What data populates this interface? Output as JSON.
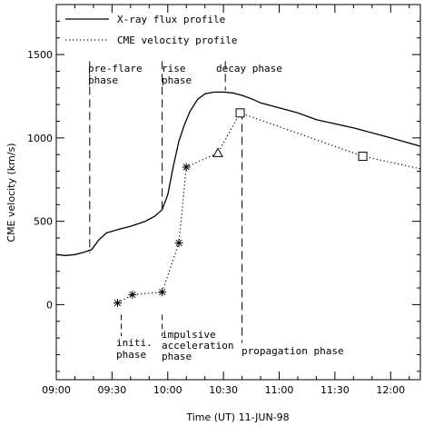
{
  "chart_data": {
    "type": "line",
    "xlabel": "Time (UT) 11-JUN-98",
    "ylabel": "CME velocity (km/s)",
    "x_tick_labels": [
      "09:00",
      "09:30",
      "10:00",
      "10:30",
      "11:00",
      "11:30",
      "12:00"
    ],
    "x_ticks": [
      "09:00",
      "09:30",
      "10:00",
      "10:30",
      "11:00",
      "11:30",
      "12:00"
    ],
    "y_ticks": [
      0,
      500,
      1000,
      1500
    ],
    "xlim": [
      "09:00",
      "12:16"
    ],
    "ylim": [
      -450,
      1800
    ],
    "legend_position": "top-left",
    "series": [
      {
        "name": "X-ray flux profile",
        "style": "solid",
        "points": [
          [
            "09:00",
            300
          ],
          [
            "09:05",
            295
          ],
          [
            "09:10",
            300
          ],
          [
            "09:15",
            315
          ],
          [
            "09:19",
            330
          ],
          [
            "09:23",
            390
          ],
          [
            "09:27",
            430
          ],
          [
            "09:33",
            450
          ],
          [
            "09:40",
            470
          ],
          [
            "09:48",
            500
          ],
          [
            "09:53",
            530
          ],
          [
            "09:57",
            570
          ],
          [
            "10:00",
            660
          ],
          [
            "10:03",
            830
          ],
          [
            "10:06",
            980
          ],
          [
            "10:09",
            1080
          ],
          [
            "10:12",
            1160
          ],
          [
            "10:16",
            1230
          ],
          [
            "10:20",
            1265
          ],
          [
            "10:25",
            1275
          ],
          [
            "10:30",
            1275
          ],
          [
            "10:35",
            1270
          ],
          [
            "10:40",
            1255
          ],
          [
            "10:45",
            1235
          ],
          [
            "10:50",
            1210
          ],
          [
            "11:00",
            1180
          ],
          [
            "11:10",
            1150
          ],
          [
            "11:20",
            1110
          ],
          [
            "11:30",
            1085
          ],
          [
            "11:40",
            1060
          ],
          [
            "11:50",
            1030
          ],
          [
            "12:00",
            1000
          ],
          [
            "12:08",
            975
          ],
          [
            "12:16",
            950
          ]
        ]
      },
      {
        "name": "CME velocity profile",
        "style": "dotted",
        "points": [
          [
            "09:33",
            10
          ],
          [
            "09:41",
            60
          ],
          [
            "09:57",
            75
          ],
          [
            "10:06",
            370
          ],
          [
            "10:10",
            825
          ],
          [
            "10:27",
            910
          ],
          [
            "10:39",
            1150
          ],
          [
            "11:45",
            890
          ],
          [
            "12:16",
            815
          ]
        ],
        "markers": [
          "asterisk",
          "asterisk",
          "asterisk",
          "asterisk",
          "asterisk",
          "triangle",
          "square",
          "square",
          "none"
        ]
      }
    ],
    "phase_lines": [
      {
        "time": "09:18",
        "y_from": 1460,
        "y_to": 310
      },
      {
        "time": "09:57",
        "y_from": 1460,
        "y_to": 570
      },
      {
        "time": "10:31",
        "y_from": 1460,
        "y_to": 1285
      },
      {
        "time": "10:40",
        "y_from": 1160,
        "y_to": -230
      }
    ],
    "lower_markers": [
      {
        "time": "09:35",
        "y_from": -60,
        "y_to": -190
      },
      {
        "time": "09:57",
        "y_from": -60,
        "y_to": -190
      }
    ],
    "phase_labels": {
      "pre_flare": [
        "pre-flare",
        "phase"
      ],
      "rise": [
        "rise",
        "phase"
      ],
      "decay": [
        "decay phase"
      ],
      "initial": [
        "initi.",
        "phase"
      ],
      "impulsive": [
        "impulsive",
        "acceleration",
        "phase"
      ],
      "propagation": [
        "propagation phase"
      ]
    }
  }
}
